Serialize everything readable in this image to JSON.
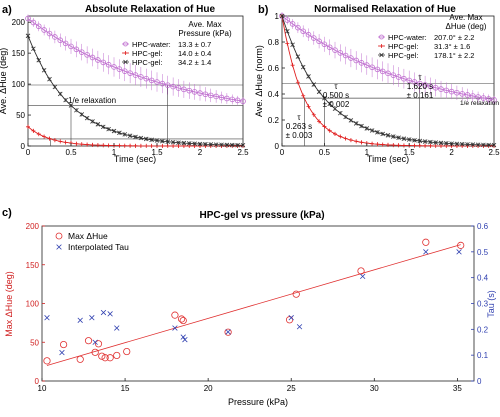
{
  "figure": {
    "panels": [
      {
        "letter": "a)",
        "title": "Absolute Relaxation of Hue",
        "xlabel": "Time (sec)",
        "ylabel": "Ave. ΔHue (deg)",
        "xlim": [
          0,
          2.5
        ],
        "ylim": [
          0,
          210
        ],
        "x_ticks": [
          "0",
          "0.5",
          "1",
          "1.5",
          "2",
          "2.5"
        ],
        "y_ticks": [
          "0",
          "50",
          "100",
          "150",
          "200"
        ],
        "legend_title_lines": [
          "Ave. Max",
          "Pressure (kPa)"
        ],
        "legend_entries": [
          {
            "label": "HPC-water:",
            "value": "13.3 ± 0.7"
          },
          {
            "label": "HPC-gel:",
            "value": "14.0 ± 0.4"
          },
          {
            "label": "HPC-gel:",
            "value": "34.2 ± 1.4"
          }
        ],
        "annotation": "1/e relaxation"
      },
      {
        "letter": "b)",
        "title": "Normalised Relaxation of Hue",
        "xlabel": "Time (sec)",
        "ylabel": "Ave. ΔHue (norm)",
        "xlim": [
          0,
          2.5
        ],
        "ylim": [
          0,
          1.03
        ],
        "x_ticks": [
          "0",
          "0.5",
          "1",
          "1.5",
          "2",
          "2.5"
        ],
        "y_ticks": [
          "0",
          "0.2",
          "0.4",
          "0.6",
          "0.8",
          "1"
        ],
        "legend_title_lines": [
          "Ave. Max",
          "ΔHue (deg)"
        ],
        "legend_entries": [
          {
            "label": "HPC-water:",
            "value": "207.0° ± 2.2"
          },
          {
            "label": "HPC-gel:",
            "value": "31.3° ± 1.6"
          },
          {
            "label": "HPC-gel:",
            "value": "178.1° ± 2.2"
          }
        ],
        "annotation": "1/e relaxation",
        "tau_labels": [
          {
            "symbol": "τ",
            "value": "0.263 s",
            "error": "± 0.003"
          },
          {
            "symbol": "τ",
            "value": "0.500 s",
            "error": "± 0.002"
          },
          {
            "symbol": "τ",
            "value": "1.620 s",
            "error": "± 0.161"
          }
        ]
      },
      {
        "letter": "c)",
        "title": "HPC-gel vs pressure (kPa)",
        "xlabel": "Pressure (kPa)",
        "ylabel_left": "Max ΔHue (deg)",
        "ylabel_right": "Tau (s)",
        "xlim": [
          10,
          36
        ],
        "ylim_left": [
          0,
          200
        ],
        "ylim_right": [
          0,
          0.6
        ],
        "x_ticks": [
          "10",
          "15",
          "20",
          "25",
          "30",
          "35"
        ],
        "y_ticks_left": [
          "0",
          "50",
          "100",
          "150",
          "200"
        ],
        "y_ticks_right": [
          "0",
          "0.1",
          "0.2",
          "0.3",
          "0.4",
          "0.5",
          "0.6"
        ],
        "legend_entries": [
          "Max ΔHue",
          "Interpolated Tau"
        ]
      }
    ],
    "colors": {
      "water": "#c070d0",
      "gel_low": "#e02020",
      "gel_high": "#303030",
      "hue_marker": "#e03030",
      "tau_marker": "#3040b0",
      "right_axis": "#3040b0",
      "left_axis": "#d02020"
    }
  },
  "chart_data": [
    {
      "type": "line",
      "title": "Absolute Relaxation of Hue",
      "xlabel": "Time (sec)",
      "ylabel": "Ave. ΔHue (deg)",
      "xlim": [
        0,
        2.5
      ],
      "ylim": [
        0,
        210
      ],
      "grid": false,
      "legend": "top-right",
      "series": [
        {
          "name": "HPC-water: 13.3 ± 0.7",
          "color": "#c070d0",
          "marker": "circle",
          "start": 206,
          "end": 36,
          "tau": 1.62
        },
        {
          "name": "HPC-gel: 14.0 ± 0.4",
          "color": "#e02020",
          "marker": "plus",
          "start": 31,
          "end": 0,
          "tau": 0.263
        },
        {
          "name": "HPC-gel: 34.2 ± 1.4",
          "color": "#303030",
          "marker": "x",
          "start": 178,
          "end": 0,
          "tau": 0.5
        }
      ],
      "annotations": [
        "1/e relaxation"
      ]
    },
    {
      "type": "line",
      "title": "Normalised Relaxation of Hue",
      "xlabel": "Time (sec)",
      "ylabel": "Ave. ΔHue (norm)",
      "xlim": [
        0,
        2.5
      ],
      "ylim": [
        0,
        1
      ],
      "grid": false,
      "legend": "top-right",
      "series": [
        {
          "name": "HPC-water: 207.0° ± 2.2",
          "color": "#c070d0",
          "marker": "circle",
          "start": 1.0,
          "end": 0.18,
          "tau": 1.62
        },
        {
          "name": "HPC-gel: 31.3° ± 1.6",
          "color": "#e02020",
          "marker": "plus",
          "start": 1.0,
          "end": 0,
          "tau": 0.263
        },
        {
          "name": "HPC-gel: 178.1° ± 2.2",
          "color": "#303030",
          "marker": "x",
          "start": 1.0,
          "end": 0,
          "tau": 0.5
        }
      ],
      "annotations": [
        "1/e relaxation",
        "τ 0.263 s ± 0.003",
        "τ 0.500 s ± 0.002",
        "τ 1.620 s ± 0.161"
      ]
    },
    {
      "type": "scatter",
      "title": "HPC-gel vs pressure (kPa)",
      "xlabel": "Pressure (kPa)",
      "ylabel": "Max ΔHue (deg)",
      "ylabel_right": "Tau (s)",
      "xlim": [
        10,
        36
      ],
      "ylim": [
        0,
        200
      ],
      "ylim_right": [
        0,
        0.6
      ],
      "grid": false,
      "legend": "top-left",
      "series": [
        {
          "name": "Max ΔHue",
          "axis": "left",
          "color": "#e03030",
          "marker": "circle",
          "points": [
            [
              10.3,
              26
            ],
            [
              11.3,
              47
            ],
            [
              12.3,
              28
            ],
            [
              12.8,
              52
            ],
            [
              13.2,
              37
            ],
            [
              13.4,
              48
            ],
            [
              13.6,
              32
            ],
            [
              13.8,
              30
            ],
            [
              14.1,
              30
            ],
            [
              14.5,
              33
            ],
            [
              15.1,
              38
            ],
            [
              18.0,
              85
            ],
            [
              18.4,
              80
            ],
            [
              18.5,
              78
            ],
            [
              21.2,
              63
            ],
            [
              24.9,
              79
            ],
            [
              25.3,
              112
            ],
            [
              29.2,
              142
            ],
            [
              33.1,
              179
            ],
            [
              35.2,
              175
            ]
          ]
        },
        {
          "name": "Interpolated Tau",
          "axis": "right",
          "color": "#3040b0",
          "marker": "x",
          "points": [
            [
              10.3,
              0.245
            ],
            [
              11.2,
              0.11
            ],
            [
              12.3,
              0.235
            ],
            [
              13.0,
              0.245
            ],
            [
              13.2,
              0.15
            ],
            [
              13.7,
              0.265
            ],
            [
              14.1,
              0.26
            ],
            [
              14.5,
              0.205
            ],
            [
              18.0,
              0.205
            ],
            [
              18.5,
              0.17
            ],
            [
              18.6,
              0.16
            ],
            [
              21.2,
              0.19
            ],
            [
              25.0,
              0.245
            ],
            [
              25.5,
              0.21
            ],
            [
              29.3,
              0.405
            ],
            [
              33.1,
              0.5
            ],
            [
              35.1,
              0.5
            ]
          ]
        },
        {
          "name": "fit",
          "axis": "left",
          "color": "#e03030",
          "type": "line",
          "points": [
            [
              10.3,
              20
            ],
            [
              35.2,
              176
            ]
          ]
        }
      ]
    }
  ]
}
